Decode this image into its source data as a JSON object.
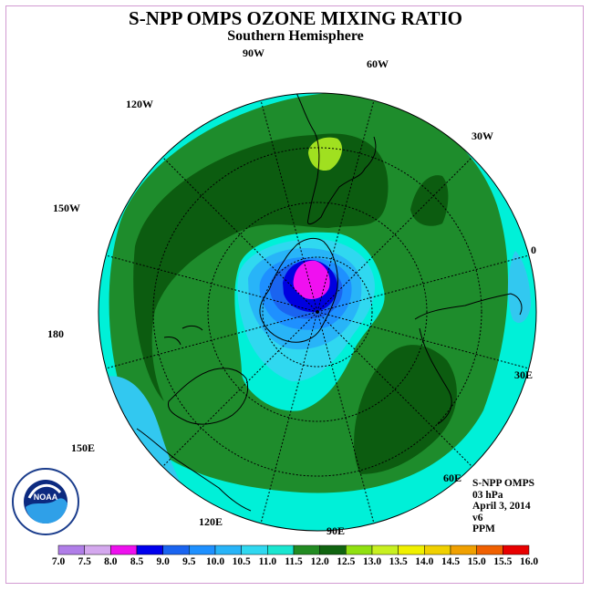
{
  "title": "S-NPP OMPS OZONE MIXING RATIO",
  "subtitle": "Southern Hemisphere",
  "longitude_labels": [
    "90W",
    "60W",
    "30W",
    "0",
    "30E",
    "60E",
    "90E",
    "120E",
    "150E",
    "180",
    "150W",
    "120W"
  ],
  "info": {
    "line1": "S-NPP OMPS",
    "line2": "03 hPa",
    "line3": "April 3, 2014",
    "line4": "v6",
    "line5": "PPM"
  },
  "logo_text": "NOAA",
  "colorbar": {
    "labels": [
      "7.0",
      "7.5",
      "8.0",
      "8.5",
      "9.0",
      "9.5",
      "10.0",
      "10.5",
      "11.0",
      "11.5",
      "12.0",
      "12.5",
      "13.0",
      "13.5",
      "14.0",
      "14.5",
      "15.0",
      "15.5",
      "16.0"
    ],
    "colors": [
      "#b07ee8",
      "#d4a8ee",
      "#ee10ee",
      "#0000ee",
      "#1a64f0",
      "#1e90ff",
      "#28b4f8",
      "#30d8f0",
      "#1ae6d0",
      "#228b22",
      "#106410",
      "#90e010",
      "#c8f020",
      "#f0f000",
      "#f0d000",
      "#f0a000",
      "#f06000",
      "#e80000",
      "#8b5a3c"
    ]
  },
  "colors": {
    "ring": "#00f0d8",
    "green": "#1e8c2c",
    "dark_green": "#0c5c10",
    "light_blue": "#32c8f0",
    "lime": "#a0e020",
    "deep_blue": "#0000e0",
    "magenta": "#f010f0"
  }
}
